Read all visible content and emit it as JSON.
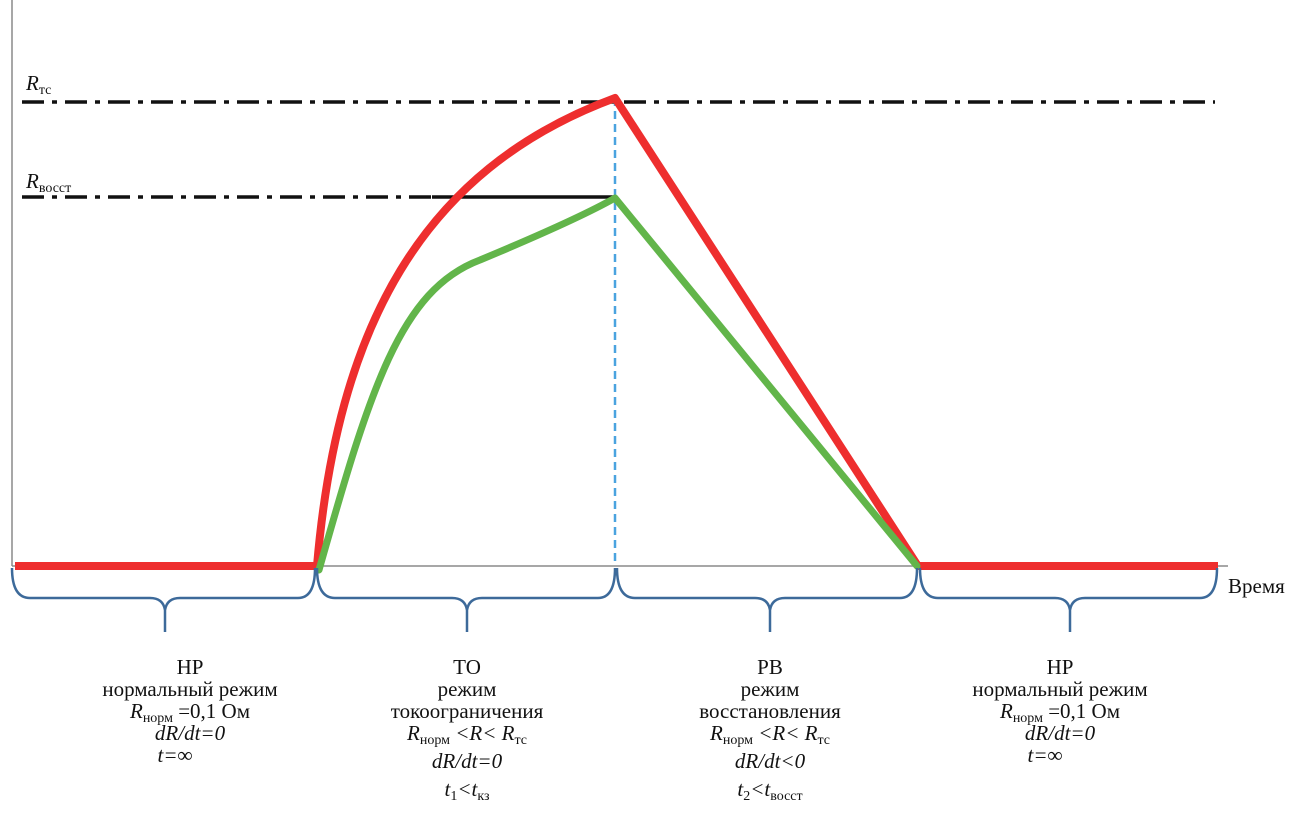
{
  "colors": {
    "red_curve": "#ee2e2e",
    "green_curve": "#62b54a",
    "dashdot": "#111111",
    "blue_dashed": "#4aa3df",
    "brace": "#3d6a9a",
    "axis": "#8a8a8a"
  },
  "axis": {
    "x_label": "Время"
  },
  "levels": {
    "r_tc": {
      "main": "R",
      "sub": "тс"
    },
    "r_vosst": {
      "main": "R",
      "sub": "восст"
    }
  },
  "segments": [
    {
      "code": "НР",
      "name": "нормальный режим",
      "line1": {
        "main": "R",
        "sub": "норм",
        "rest": " =0,1 Ом"
      },
      "line2": "dR/dt=0",
      "line3": "t=∞"
    },
    {
      "code": "ТО",
      "name_a": "режим",
      "name_b": "токоограничения",
      "cond": {
        "a": "R",
        "a_sub": "норм",
        "b": " <R< ",
        "c": "R",
        "c_sub": "тс"
      },
      "line2": "dR/dt=0",
      "line3": {
        "a": "t",
        "a_sub": "1",
        "b": "<",
        "c": "t",
        "c_sub": "кз"
      }
    },
    {
      "code": "РВ",
      "name_a": "режим",
      "name_b": "восстановления",
      "cond": {
        "a": "R",
        "a_sub": "норм",
        "b": " <R< ",
        "c": "R",
        "c_sub": "тс"
      },
      "line2": "dR/dt<0",
      "line3": {
        "a": "t",
        "a_sub": "2",
        "b": "<",
        "c": "t",
        "c_sub": "восст"
      }
    },
    {
      "code": "НР",
      "name": "нормальный режим",
      "line1": {
        "main": "R",
        "sub": "норм",
        "rest": " =0,1 Ом"
      },
      "line2": "dR/dt=0",
      "line3": "t=∞"
    }
  ]
}
